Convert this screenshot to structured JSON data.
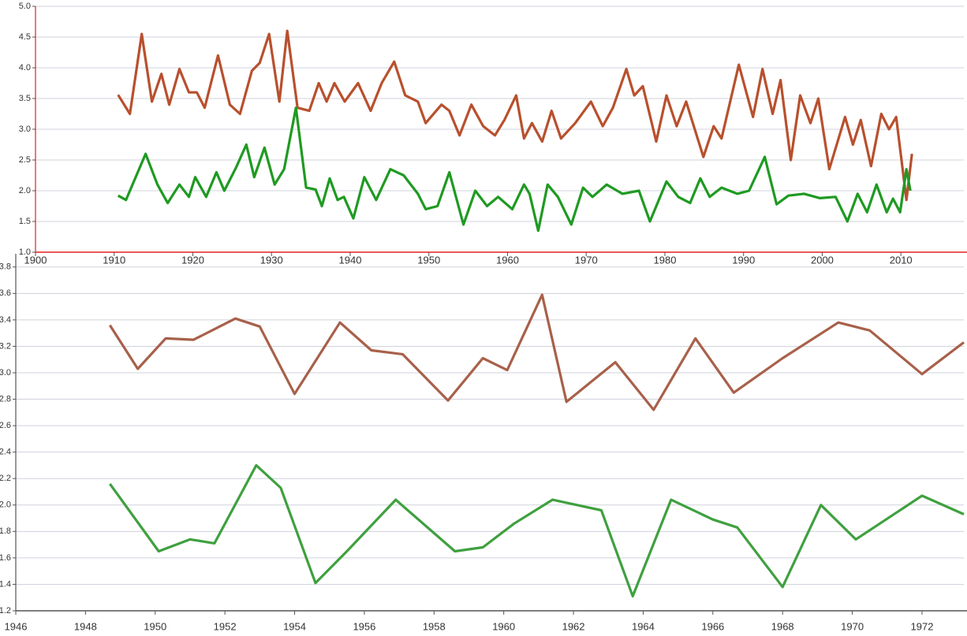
{
  "chart_data": [
    {
      "type": "line",
      "xlim": [
        1900,
        2018
      ],
      "xticks": [
        1900,
        1910,
        1920,
        1930,
        1940,
        1950,
        1960,
        1970,
        1980,
        1990,
        2000,
        2010
      ],
      "ylim": [
        1.0,
        5.0
      ],
      "yticks": [
        {
          "value": 1.0,
          "label": "1.0"
        },
        1.5,
        {
          "value": 2.0,
          "label": "2.0"
        },
        2.5,
        {
          "value": 3.0,
          "label": "3.0"
        },
        3.5,
        {
          "value": 4.0,
          "label": "4.0"
        },
        4.5,
        {
          "value": 5.0,
          "label": "5.0"
        }
      ],
      "grid": true,
      "axis_color": "#e02020",
      "series": [
        {
          "color": "#b8502e",
          "x": [
            1910.5,
            1912,
            1913.5,
            1914.8,
            1916,
            1917,
            1918.3,
            1919.5,
            1920.5,
            1921.5,
            1923.2,
            1924.7,
            1926,
            1927.5,
            1928.5,
            1929.7,
            1931,
            1932,
            1933.3,
            1934.8,
            1936,
            1937,
            1938,
            1939.3,
            1941,
            1942.6,
            1944,
            1945.6,
            1947,
            1948.6,
            1949.6,
            1951.6,
            1952.6,
            1953.9,
            1955.4,
            1956.9,
            1958.4,
            1959.6,
            1961.1,
            1962.1,
            1963.1,
            1964.4,
            1965.6,
            1966.8,
            1968.6,
            1970.6,
            1972.1,
            1973.4,
            1975.1,
            1976.1,
            1977.2,
            1978.9,
            1980.2,
            1981.5,
            1982.7,
            1984.9,
            1986.2,
            1987.2,
            1989.4,
            1991.2,
            1992.4,
            1993.7,
            1994.7,
            1996,
            1997.2,
            1998.5,
            1999.5,
            2000.9,
            2002.9,
            2003.9,
            2004.9,
            2006.2,
            2007.5,
            2008.5,
            2009.4,
            2010.7,
            2011.4
          ],
          "values": [
            3.56,
            3.25,
            4.55,
            3.45,
            3.9,
            3.4,
            3.98,
            3.6,
            3.6,
            3.35,
            4.2,
            3.4,
            3.25,
            3.95,
            4.08,
            4.55,
            3.45,
            4.6,
            3.35,
            3.3,
            3.75,
            3.45,
            3.75,
            3.45,
            3.75,
            3.3,
            3.75,
            4.1,
            3.55,
            3.45,
            3.1,
            3.4,
            3.3,
            2.9,
            3.4,
            3.05,
            2.9,
            3.15,
            3.55,
            2.85,
            3.1,
            2.8,
            3.3,
            2.85,
            3.1,
            3.45,
            3.05,
            3.35,
            3.98,
            3.55,
            3.7,
            2.8,
            3.55,
            3.05,
            3.45,
            2.55,
            3.05,
            2.85,
            4.05,
            3.2,
            3.98,
            3.25,
            3.8,
            2.5,
            3.55,
            3.1,
            3.5,
            2.35,
            3.2,
            2.75,
            3.15,
            2.4,
            3.25,
            3.0,
            3.2,
            1.85,
            2.6
          ]
        },
        {
          "color": "#1f9a22",
          "x": [
            1910.5,
            1911.5,
            1914,
            1915.5,
            1916.8,
            1918.3,
            1919.5,
            1920.3,
            1921.7,
            1923,
            1924,
            1925.5,
            1926.8,
            1927.8,
            1929.1,
            1930.4,
            1931.6,
            1933.1,
            1934.4,
            1935.6,
            1936.4,
            1937.4,
            1938.4,
            1939.2,
            1940.4,
            1941.8,
            1943.3,
            1945.1,
            1946.8,
            1948.6,
            1949.6,
            1951.1,
            1952.6,
            1954.4,
            1955.9,
            1957.4,
            1958.8,
            1960.6,
            1962.1,
            1962.8,
            1963.9,
            1965.1,
            1966.4,
            1968.1,
            1969.6,
            1970.8,
            1972.6,
            1974.6,
            1976.7,
            1978.1,
            1980.2,
            1981.7,
            1983.2,
            1984.5,
            1985.7,
            1987.2,
            1989.2,
            1990.7,
            1992.7,
            1994.2,
            1995.7,
            1997.7,
            1999.7,
            2001.7,
            2003.2,
            2004.5,
            2005.7,
            2006.9,
            2008.2,
            2009,
            2009.9,
            2010.7,
            2011.2
          ],
          "values": [
            1.92,
            1.85,
            2.6,
            2.1,
            1.8,
            2.1,
            1.9,
            2.22,
            1.9,
            2.3,
            2.0,
            2.38,
            2.75,
            2.22,
            2.7,
            2.1,
            2.35,
            3.35,
            2.05,
            2.02,
            1.75,
            2.2,
            1.85,
            1.9,
            1.55,
            2.22,
            1.85,
            2.35,
            2.25,
            1.95,
            1.7,
            1.75,
            2.3,
            1.45,
            2.0,
            1.75,
            1.9,
            1.7,
            2.1,
            1.95,
            1.35,
            2.1,
            1.9,
            1.45,
            2.05,
            1.9,
            2.1,
            1.95,
            2.0,
            1.5,
            2.15,
            1.9,
            1.8,
            2.2,
            1.9,
            2.05,
            1.95,
            2.0,
            2.55,
            1.78,
            1.92,
            1.95,
            1.88,
            1.9,
            1.5,
            1.95,
            1.65,
            2.1,
            1.65,
            1.87,
            1.65,
            2.35,
            2.0
          ]
        }
      ]
    },
    {
      "type": "line",
      "xlim": [
        1946,
        1973.2
      ],
      "xticks": [
        1946,
        1948,
        1950,
        1952,
        1954,
        1956,
        1958,
        1960,
        1962,
        1964,
        1966,
        1968,
        1970,
        1972
      ],
      "ylim": [
        1.2,
        3.9
      ],
      "yticks": [
        1.2,
        1.4,
        1.6,
        1.8,
        {
          "value": 2.0,
          "label": "2.0"
        },
        2.2,
        2.4,
        2.6,
        2.8,
        {
          "value": 3.0,
          "label": "3.0"
        },
        3.2,
        3.4,
        3.6,
        3.8
      ],
      "grid": true,
      "axis_color": "#555555",
      "series": [
        {
          "color": "#a8604a",
          "x": [
            1948.7,
            1949.5,
            1950.3,
            1951.1,
            1952.3,
            1953,
            1954,
            1955.3,
            1956.2,
            1957.1,
            1958.4,
            1959.4,
            1960.1,
            1961.1,
            1961.8,
            1963.2,
            1964.3,
            1965.5,
            1966.6,
            1968,
            1969.6,
            1970.5,
            1972,
            1973.2
          ],
          "values": [
            3.36,
            3.03,
            3.26,
            3.25,
            3.41,
            3.35,
            2.84,
            3.38,
            3.17,
            3.14,
            2.79,
            3.11,
            3.02,
            3.59,
            2.78,
            3.08,
            2.72,
            3.26,
            2.85,
            3.11,
            3.38,
            3.32,
            2.99,
            3.23
          ]
        },
        {
          "color": "#3fa03f",
          "x": [
            1948.7,
            1950.1,
            1951,
            1951.7,
            1952.9,
            1953.6,
            1954.6,
            1955.5,
            1956.9,
            1958.6,
            1959.4,
            1960.3,
            1961.4,
            1962.8,
            1963.7,
            1964.8,
            1966,
            1966.7,
            1968,
            1969.1,
            1970.1,
            1972,
            1973.2
          ],
          "values": [
            2.16,
            1.65,
            1.74,
            1.71,
            2.3,
            2.13,
            1.41,
            1.65,
            2.04,
            1.65,
            1.68,
            1.86,
            2.04,
            1.96,
            1.31,
            2.04,
            1.89,
            1.83,
            1.38,
            2.0,
            1.74,
            2.07,
            1.93
          ]
        }
      ]
    }
  ]
}
